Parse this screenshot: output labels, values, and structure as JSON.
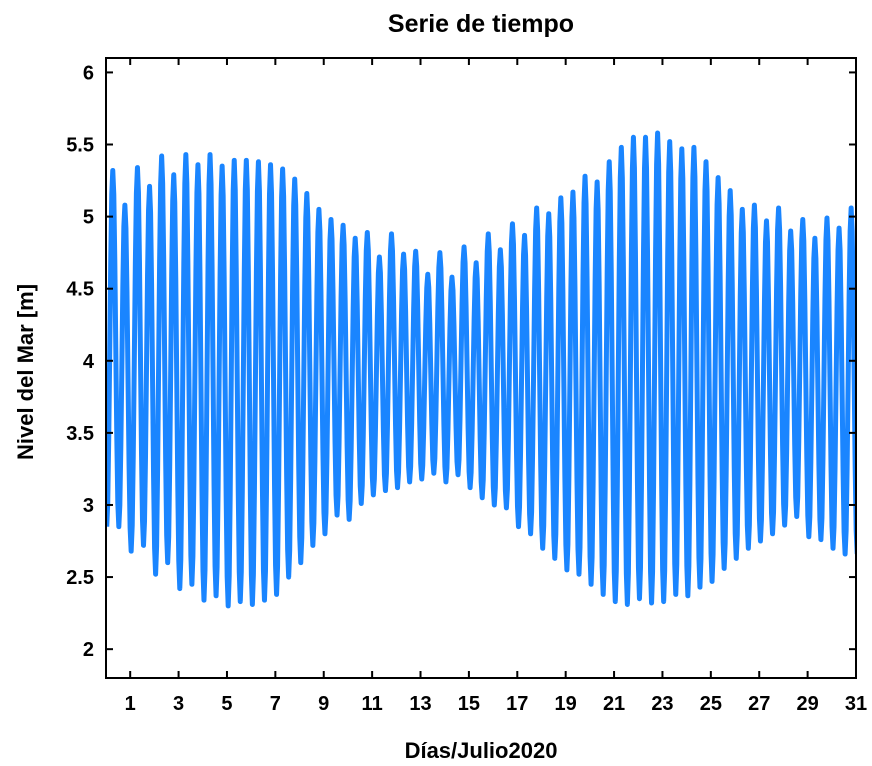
{
  "chart_data": {
    "type": "line",
    "title": "Serie de tiempo",
    "xlabel": "Días/Julio2020",
    "ylabel": "Nivel del Mar [m]",
    "xlim": [
      0,
      31
    ],
    "ylim": [
      1.8,
      6.1
    ],
    "x_ticks": [
      1,
      3,
      5,
      7,
      9,
      11,
      13,
      15,
      17,
      19,
      21,
      23,
      25,
      27,
      29,
      31
    ],
    "y_ticks": [
      2,
      2.5,
      3,
      3.5,
      4,
      4.5,
      5,
      5.5,
      6
    ],
    "x_tick_labels": [
      "1",
      "3",
      "5",
      "7",
      "9",
      "11",
      "13",
      "15",
      "17",
      "19",
      "21",
      "23",
      "25",
      "27",
      "29",
      "31"
    ],
    "y_tick_labels": [
      "2",
      "2.5",
      "3",
      "3.5",
      "4",
      "4.5",
      "5",
      "5.5",
      "6"
    ],
    "grid": false,
    "series_color": "#1a85ff",
    "series": [
      {
        "days": [
          0.28,
          0.78,
          1.3,
          1.8,
          2.3,
          2.8,
          3.3,
          3.8,
          4.3,
          4.8,
          5.3,
          5.8,
          6.3,
          6.8,
          7.3,
          7.8,
          8.3,
          8.8,
          9.3,
          9.8,
          10.3,
          10.8,
          11.3,
          11.8,
          12.3,
          12.8,
          13.3,
          13.8,
          14.3,
          14.8,
          15.3,
          15.8,
          16.3,
          16.8,
          17.3,
          17.8,
          18.3,
          18.8,
          19.3,
          19.8,
          20.3,
          20.8,
          21.3,
          21.8,
          22.3,
          22.8,
          23.3,
          23.8,
          24.3,
          24.8,
          25.3,
          25.8,
          26.3,
          26.8,
          27.3,
          27.8,
          28.3,
          28.8,
          29.3,
          29.8,
          30.3,
          30.8
        ],
        "high_tides": [
          5.32,
          5.08,
          5.34,
          5.21,
          5.42,
          5.29,
          5.43,
          5.36,
          5.43,
          5.35,
          5.39,
          5.39,
          5.38,
          5.36,
          5.33,
          5.26,
          5.16,
          5.05,
          4.98,
          4.94,
          4.85,
          4.89,
          4.72,
          4.88,
          4.74,
          4.76,
          4.6,
          4.75,
          4.58,
          4.79,
          4.68,
          4.88,
          4.77,
          4.95,
          4.87,
          5.06,
          5.02,
          5.13,
          5.17,
          5.28,
          5.24,
          5.38,
          5.48,
          5.55,
          5.55,
          5.58,
          5.52,
          5.47,
          5.48,
          5.38,
          5.27,
          5.18,
          5.05,
          5.08,
          4.97,
          5.06,
          4.9,
          4.98,
          4.85,
          4.99,
          4.92,
          5.06
        ],
        "low_tides": [
          2.85,
          2.68,
          2.72,
          2.52,
          2.6,
          2.42,
          2.45,
          2.34,
          2.37,
          2.3,
          2.33,
          2.31,
          2.34,
          2.38,
          2.5,
          2.6,
          2.72,
          2.8,
          2.93,
          2.9,
          3.01,
          3.07,
          3.1,
          3.12,
          3.16,
          3.18,
          3.22,
          3.16,
          3.21,
          3.12,
          3.05,
          3.0,
          2.98,
          2.85,
          2.8,
          2.7,
          2.63,
          2.55,
          2.52,
          2.45,
          2.38,
          2.33,
          2.31,
          2.35,
          2.32,
          2.33,
          2.38,
          2.37,
          2.43,
          2.47,
          2.56,
          2.63,
          2.7,
          2.75,
          2.8,
          2.86,
          2.92,
          2.78,
          2.76,
          2.7,
          2.66,
          2.66
        ]
      }
    ]
  }
}
